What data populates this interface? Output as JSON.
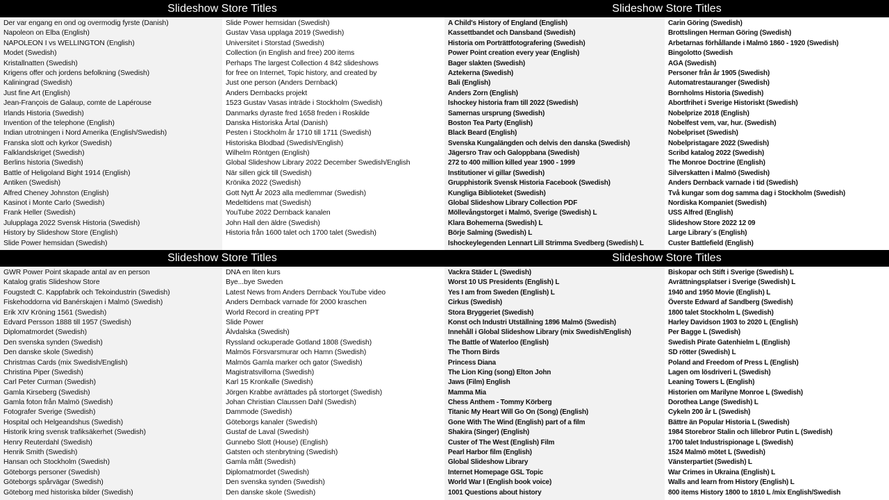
{
  "quadrants": [
    {
      "title": "Slideshow Store Titles",
      "bold": false,
      "col1": [
        "Der var engang en ond og overmodig fyrste (Danish)",
        "Napoleon on Elba (English)",
        "NAPOLEON I vs WELLINGTON (English)",
        "Modet (Swedish)",
        "Kristallnatten (Swedish)",
        "Krigens offer och jordens befolkning (Swedish)",
        "Kaliningrad (Swedish)",
        "Just fine Art (English)",
        "Jean-François de Galaup, comte de Lapérouse",
        "Irlands Historia (Swedish)",
        "Invention of the telephone (English)",
        "Indian utrotningen i Nord Amerika (English/Swedish)",
        "Franska slott och kyrkor (Swedish)",
        "Falklandskriget (Swedish)",
        "Berlins historia (Swedish)",
        "Battle of Heligoland Bight 1914 (English)",
        "Antiken (Swedish)",
        "Alfred Cheney Johnston (English)",
        "Kasinot i Monte Carlo (Swedish)",
        "Frank Heller (Swedish)",
        "Julupplaga 2022 Svensk Historia (Swedish)",
        "History by Slideshow Store (English)",
        "Slide Power hemsidan (Swedish)"
      ],
      "col2": [
        "Slide Power hemsidan (Swedish)",
        "Gustav Vasa upplaga 2019 (Swedish)",
        "Universitet i Storstad (Swedish)",
        "Collection (in English and free)  200 items",
        "Perhaps The largest Collection 4 842 slideshows",
        "for free on Internet, Topic history, and created by",
        "Just one person (Anders Dernback)",
        "Anders Dernbacks projekt",
        "1523 Gustav Vasas inträde i Stockholm (Swedish)",
        "Danmarks dyraste fred 1658 freden i Roskilde",
        "Danska Historiska Årtal (Danish)",
        "Pesten i Stockholm år 1710 till 1711 (Swedish)",
        "Historiska Blodbad (Swedish/English)",
        "Wilhelm Röntgen (English)",
        "Global Slideshow Library 2022 December Swedish/English",
        "När sillen gick till (Swedish)",
        "Krönika 2022 (Swedish)",
        "Gott Nytt År 2023 alla medlemmar (Swedish)",
        "Medeltidens mat (Swedish)",
        "YouTube 2022  Dernback kanalen",
        "John Hall den äldre (Swedish)",
        "Historia från 1600 talet och 1700 talet (Swedish)"
      ]
    },
    {
      "title": "Slideshow Store Titles",
      "bold": true,
      "col1": [
        "A Child's History of England (English)",
        "Kassettbandet och Dansband (Swedish)",
        "Historia om Porträttfotografering (Swedish)",
        "Power Point creation every year (English)",
        "Bager slakten (Swedish)",
        "Aztekerna (Swedish)",
        "Bali (English)",
        "Anders Zorn (English)",
        "Ishockey historia fram till 2022 (Swedish)",
        "Samernas ursprung (Swedish)",
        "Boston Tea Party (English)",
        "Black Beard (English)",
        "Svenska Kungalängden och delvis den danska (Swedish)",
        "Jägersro Trav och Galoppbana (Swedish)",
        "272 to 400 million killed year 1900 - 1999",
        "Institutioner vi gillar (Swedish)",
        "Grupphistorik Svensk Historia Facebook (Swedish)",
        "Kungliga Biblioteket (Swedish)",
        "Global Slideshow Library Collection PDF",
        "Möllevångstorget i Malmö, Sverige (Swedish) L",
        "Klara Bohemerna (Swedish) L",
        "Börje Salming (Swedish) L",
        "Ishockeylegenden Lennart Lill Strimma Svedberg (Swedish) L"
      ],
      "col2": [
        "Carin Göring (Swedish)",
        "Brottslingen Herman Göring (Swedish)",
        "Arbetarnas förhållande i Malmö 1860 - 1920 (Swedish)",
        "Bingolotto (Swedish",
        "AGA (Swedish)",
        "Personer från år 1905  (Swedish)",
        "Automatrestauranger (Swedish)",
        "Bornholms Historia (Swedish)",
        "Abortfrihet i Sverige Historiskt (Swedish)",
        "Nobelprize 2018 (English)",
        "Nobelfest vem, var, hur. (Swedish)",
        "Nobelpriset (Swedish)",
        "Nobelpristagare 2022 (Swedish)",
        "Scribd katalog 2022 (Swedish)",
        "The Monroe Doctrine (English)",
        "Silverskatten i Malmö (Swedish)",
        "Anders Dernback varnade i tid (Swedish)",
        "Två kungar som dog samma dag i Stockholm (Swedish)",
        "Nordiska Kompaniet (Swedish)",
        "USS Alfred (English)",
        "Slideshow Store 2022 12 09",
        "Large Library´s (English)",
        "Custer Battlefield (English)"
      ]
    },
    {
      "title": "Slideshow Store Titles",
      "bold": false,
      "col1": [
        "GWR Power Point skapade antal av en person",
        "Katalog gratis Slideshow Store",
        "Fougstedt C. Kappfabrik och Tekoindustrin (Swedish)",
        "Fiskehoddorna vid Banérskajen i Malmö (Swedish)",
        "Erik XIV Kröning 1561 (Swedish)",
        "Edvard Persson 1888 till 1957 (Swedish)",
        "Diplomatmordet (Swedish)",
        "Den svenska synden (Swedish)",
        "Den danske skole (Swedish)",
        "Christmas Cards (mix Swedish/English)",
        "Christina Piper (Swedish)",
        "Carl Peter Curman (Swedish)",
        "Gamla Kirseberg (Swedish)",
        "Gamla foton från Malmö (Swedish)",
        "Fotografer Sverige (Swedish)",
        "Hospital och Helgeandshus (Swedish)",
        "Historik kring svensk trafiksäkerhet (Swedish)",
        "Henry Reuterdahl (Swedish)",
        "Henrik Smith (Swedish)",
        "Hansan och Stockholm (Swedish)",
        "Göteborgs personer (Swedish)",
        "Göteborgs spårvägar (Swedish)",
        "Göteborg med historiska bilder (Swedish)"
      ],
      "col2": [
        "DNA en liten kurs",
        "Bye...bye Sweden",
        "Latest News from Anders Dernback YouTube video",
        "Anders Dernback varnade för 2000 kraschen",
        "World Record in creating PPT",
        "Slide Power",
        "Älvdalska (Swedish)",
        "Ryssland ockuperade Gotland 1808 (Swedish)",
        "Malmös Försvarsmurar och Hamn (Swedish)",
        "Malmös Gamla marker och gator (Swedish)",
        "Magistratsvillorna (Swedish)",
        "Karl 15 Kronkalle (Swedish)",
        "Jörgen Krabbe avrättades på stortorget (Swedish)",
        "Johan Christian Claussen Dahl (Swedish)",
        "Dammode (Swedish)",
        "Göteborgs kanaler (Swedish)",
        "Gustaf de Laval (Swedish)",
        "Gunnebo Slott (House)  (English)",
        "Gatsten och stenbrytning (Swedish)",
        "Gamla mått (Swedish)",
        "Diplomatmordet (Swedish)",
        "Den svenska synden (Swedish)",
        "Den danske skole (Swedish)"
      ]
    },
    {
      "title": "Slideshow Store Titles",
      "bold": true,
      "col1": [
        "Vackra Städer L (Swedish)",
        "Worst 10 US Presidents (English) L",
        "Yes I am from Sweden (English) L",
        "Cirkus (Swedish)",
        "Stora Bryggeriet (Swedish)",
        "Konst och Industri Utställning 1896 Malmö (Swedish)",
        "Innehåll i Global Slideshow Library (mix Swedish/English)",
        "The Battle of Waterloo (English)",
        "The Thorn Birds",
        "Princess Diana",
        "The Lion King (song) Elton John",
        "Jaws (Film) English",
        "Mamma Mia",
        "Chess Anthem - Tommy Körberg",
        "Titanic My Heart Will Go On (Song)  (English)",
        "Gone With The Wind (English) part of a film",
        "Shakira (Singer) (English)",
        "Custer of The West (English) Film",
        "Pearl Harbor film (English)",
        "Global Slideshow Library",
        "Internet Homepage GSL Topic",
        "World War I (English book voice)",
        "1001 Questions about history"
      ],
      "col2": [
        "Biskopar och Stift i Sverige (Swedish) L",
        "Avrättningsplatser i Sverige (Swedish) L",
        "1940 and 1950 Movie (English) L",
        "Överste Edward af Sandberg (Swedish)",
        "1800 talet Stockholm L (Swedish)",
        "Harley Davidson 1903 to 2020 L (English)",
        "Per Bagge  L (Swedish)",
        "Swedish Pirate Gatenhielm L (English)",
        "SD rötter (Swedish) L",
        "Poland and Freedom of Press L (English)",
        "Lagen om lösdriveri L (Swedish)",
        "Leaning Towers L (English)",
        "Historien om Marilyne Monroe L (Swedish)",
        "Dorothea Lange (Swedish) L",
        "Cykeln 200 år L (Swedish)",
        "Bättre än Popular Historia L (Swedish)",
        "1984 Storebror Stalin och lillebror Putin L (Swedish)",
        "1700 talet Industrispionage L (Swedish)",
        "1524 Malmö mötet L (Swedish)",
        "Vänsterpartiet (Swedish) L",
        "War Crimes in Ukraina (English) L",
        "Walls and learn from History (English) L",
        "800 items History 1800 to 1810 L /mix English/Swedish"
      ]
    }
  ]
}
